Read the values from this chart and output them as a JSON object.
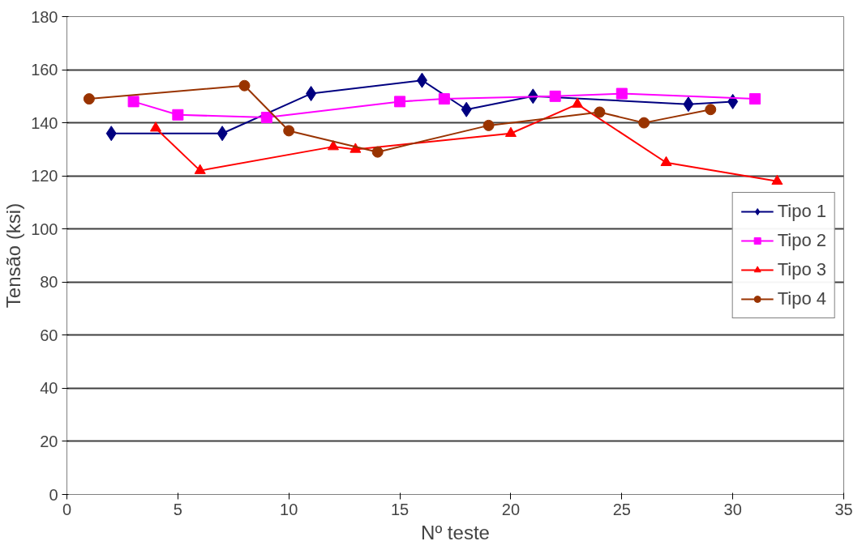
{
  "chart_data": {
    "type": "line",
    "xlabel": "Nº teste",
    "ylabel": "Tensão (ksi)",
    "xlim": [
      0,
      35
    ],
    "xticks": [
      0,
      5,
      10,
      15,
      20,
      25,
      30,
      35
    ],
    "ylim": [
      0,
      180
    ],
    "yticks": [
      0,
      20,
      40,
      60,
      80,
      100,
      120,
      140,
      160,
      180
    ],
    "grid": "y",
    "legend": "right",
    "line_style": "solid",
    "series": [
      {
        "name": "Tipo 1",
        "color": "#000080",
        "marker": "diamond",
        "x": [
          2,
          7,
          11,
          16,
          18,
          21,
          28,
          30
        ],
        "values": [
          136,
          136,
          151,
          156,
          145,
          150,
          147,
          148
        ]
      },
      {
        "name": "Tipo 2",
        "color": "#ff00ff",
        "marker": "square",
        "x": [
          3,
          5,
          9,
          15,
          17,
          22,
          25,
          31
        ],
        "values": [
          148,
          143,
          142,
          148,
          149,
          150,
          151,
          149
        ]
      },
      {
        "name": "Tipo 3",
        "color": "#ff0000",
        "marker": "triangle",
        "x": [
          4,
          6,
          12,
          13,
          20,
          23,
          27,
          32
        ],
        "values": [
          138,
          122,
          131,
          130,
          136,
          147,
          125,
          118
        ]
      },
      {
        "name": "Tipo 4",
        "color": "#993300",
        "marker": "circle",
        "x": [
          1,
          8,
          10,
          14,
          19,
          24,
          26,
          29
        ],
        "values": [
          149,
          154,
          137,
          129,
          139,
          144,
          140,
          145
        ]
      }
    ]
  }
}
